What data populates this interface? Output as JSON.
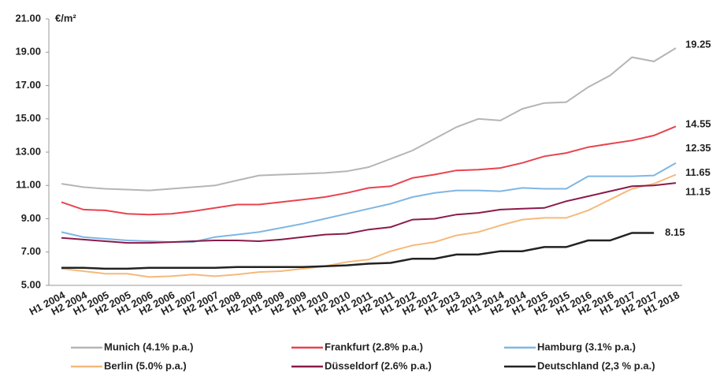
{
  "chart_data": {
    "type": "line",
    "y_unit": "€/m²",
    "categories": [
      "H1 2004",
      "H2 2004",
      "H1 2005",
      "H2 2005",
      "H1 2006",
      "H2 2006",
      "H1 2007",
      "H2 2007",
      "H1 2008",
      "H2 2008",
      "H1 2009",
      "H2 2009",
      "H1 2010",
      "H2 2010",
      "H1 2011",
      "H2 2011",
      "H1 2012",
      "H2 2012",
      "H1 2013",
      "H2 2013",
      "H1 2014",
      "H2 2014",
      "H1 2015",
      "H2 2015",
      "H1 2016",
      "H2 2016",
      "H1 2017",
      "H2 2017",
      "H1 2018"
    ],
    "series": [
      {
        "name": "Munich (4.1% p.a.)",
        "color": "#b5b5b5",
        "values": [
          11.1,
          10.9,
          10.8,
          10.75,
          10.7,
          10.8,
          10.9,
          11.0,
          11.3,
          11.6,
          11.65,
          11.7,
          11.75,
          11.85,
          12.1,
          12.6,
          13.1,
          13.8,
          14.5,
          15.0,
          14.9,
          15.6,
          15.95,
          16.0,
          16.9,
          17.6,
          18.7,
          18.45,
          19.25
        ]
      },
      {
        "name": "Frankfurt (2.8% p.a.)",
        "color": "#e8434f",
        "values": [
          10.0,
          9.55,
          9.5,
          9.3,
          9.25,
          9.3,
          9.45,
          9.65,
          9.85,
          9.85,
          10.0,
          10.15,
          10.3,
          10.55,
          10.85,
          10.95,
          11.45,
          11.65,
          11.9,
          11.95,
          12.05,
          12.35,
          12.75,
          12.95,
          13.3,
          13.5,
          13.7,
          14.0,
          14.55
        ]
      },
      {
        "name": "Hamburg (3.1% p.a.)",
        "color": "#7fb6e3",
        "values": [
          8.2,
          7.9,
          7.8,
          7.7,
          7.65,
          7.6,
          7.6,
          7.9,
          8.05,
          8.2,
          8.45,
          8.7,
          9.0,
          9.3,
          9.6,
          9.9,
          10.3,
          10.55,
          10.7,
          10.7,
          10.65,
          10.85,
          10.8,
          10.8,
          11.55,
          11.55,
          11.55,
          11.6,
          12.35
        ]
      },
      {
        "name": "Berlin (5.0% p.a.)",
        "color": "#f5b97a",
        "values": [
          6.0,
          5.85,
          5.7,
          5.7,
          5.5,
          5.55,
          5.65,
          5.55,
          5.65,
          5.8,
          5.85,
          6.0,
          6.15,
          6.4,
          6.55,
          7.05,
          7.4,
          7.6,
          8.0,
          8.2,
          8.6,
          8.95,
          9.05,
          9.05,
          9.5,
          10.15,
          10.8,
          11.1,
          11.65
        ]
      },
      {
        "name": "Düsseldorf (2.6% p.a.)",
        "color": "#8b1a4a",
        "values": [
          7.85,
          7.75,
          7.65,
          7.55,
          7.55,
          7.6,
          7.65,
          7.7,
          7.7,
          7.65,
          7.75,
          7.9,
          8.05,
          8.1,
          8.35,
          8.5,
          8.95,
          9.0,
          9.25,
          9.35,
          9.55,
          9.6,
          9.65,
          10.05,
          10.35,
          10.65,
          10.95,
          11.0,
          11.15
        ]
      },
      {
        "name": "Deutschland (2,3 % p.a.)",
        "color": "#222222",
        "values": [
          6.05,
          6.05,
          6.0,
          6.0,
          6.05,
          6.05,
          6.05,
          6.05,
          6.1,
          6.1,
          6.1,
          6.1,
          6.15,
          6.2,
          6.3,
          6.35,
          6.6,
          6.6,
          6.85,
          6.85,
          7.05,
          7.05,
          7.3,
          7.3,
          7.7,
          7.7,
          8.15,
          8.15,
          null
        ]
      }
    ],
    "ylim": [
      5,
      21
    ],
    "yticks": [
      {
        "value": 5,
        "label": "5.00"
      },
      {
        "value": 7,
        "label": "7.00"
      },
      {
        "value": 9,
        "label": "9.00"
      },
      {
        "value": 11,
        "label": "11.00"
      },
      {
        "value": 13,
        "label": "13.00"
      },
      {
        "value": 15,
        "label": "15.00"
      },
      {
        "value": 17,
        "label": "17.00"
      },
      {
        "value": 19,
        "label": "19.00"
      },
      {
        "value": 21,
        "label": "21.00"
      }
    ],
    "grid": false,
    "legend": "bottom"
  }
}
